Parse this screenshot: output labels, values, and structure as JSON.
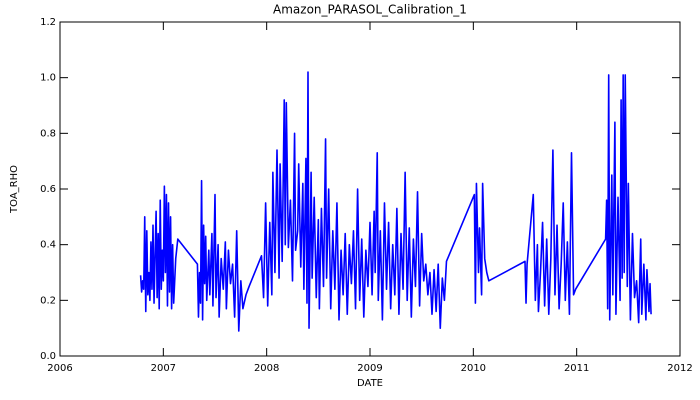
{
  "chart_data": {
    "type": "line",
    "title": "Amazon_PARASOL_Calibration_1",
    "x_label": "DATE",
    "y_label": "TOA_RHO",
    "color": "#0000ff",
    "grid": false,
    "xlim": [
      2006,
      2012
    ],
    "xticks": [
      2006,
      2007,
      2008,
      2009,
      2010,
      2011,
      2012
    ],
    "ylim": [
      0,
      1.2
    ],
    "yticks": [
      {
        "value": 0,
        "label": "0.0"
      },
      0.2,
      0.4,
      0.6,
      0.8,
      {
        "value": 1,
        "label": "1.0"
      },
      1.2
    ],
    "x": [
      2006.78,
      2006.79,
      2006.8,
      2006.81,
      2006.82,
      2006.83,
      2006.84,
      2006.85,
      2006.86,
      2006.87,
      2006.88,
      2006.89,
      2006.9,
      2006.91,
      2006.92,
      2006.93,
      2006.94,
      2006.95,
      2006.96,
      2006.97,
      2006.98,
      2006.99,
      2007.0,
      2007.01,
      2007.02,
      2007.03,
      2007.04,
      2007.05,
      2007.06,
      2007.07,
      2007.08,
      2007.09,
      2007.1,
      2007.12,
      2007.14,
      2007.33,
      2007.34,
      2007.35,
      2007.36,
      2007.37,
      2007.38,
      2007.39,
      2007.4,
      2007.41,
      2007.42,
      2007.44,
      2007.45,
      2007.47,
      2007.48,
      2007.5,
      2007.51,
      2007.53,
      2007.54,
      2007.56,
      2007.58,
      2007.6,
      2007.61,
      2007.63,
      2007.65,
      2007.67,
      2007.69,
      2007.71,
      2007.73,
      2007.75,
      2007.77,
      2007.8,
      2007.83,
      2007.95,
      2007.97,
      2007.99,
      2008.01,
      2008.03,
      2008.05,
      2008.06,
      2008.08,
      2008.1,
      2008.12,
      2008.13,
      2008.15,
      2008.17,
      2008.18,
      2008.19,
      2008.21,
      2008.23,
      2008.25,
      2008.27,
      2008.28,
      2008.3,
      2008.31,
      2008.33,
      2008.35,
      2008.36,
      2008.38,
      2008.39,
      2008.4,
      2008.41,
      2008.43,
      2008.44,
      2008.46,
      2008.48,
      2008.5,
      2008.51,
      2008.53,
      2008.55,
      2008.57,
      2008.58,
      2008.6,
      2008.62,
      2008.64,
      2008.66,
      2008.68,
      2008.7,
      2008.72,
      2008.74,
      2008.76,
      2008.78,
      2008.8,
      2008.82,
      2008.84,
      2008.86,
      2008.88,
      2008.9,
      2008.92,
      2008.94,
      2008.96,
      2008.98,
      2009.0,
      2009.02,
      2009.04,
      2009.05,
      2009.07,
      2009.08,
      2009.1,
      2009.12,
      2009.14,
      2009.16,
      2009.18,
      2009.2,
      2009.22,
      2009.24,
      2009.26,
      2009.28,
      2009.3,
      2009.32,
      2009.34,
      2009.36,
      2009.38,
      2009.4,
      2009.42,
      2009.44,
      2009.46,
      2009.48,
      2009.5,
      2009.52,
      2009.54,
      2009.56,
      2009.58,
      2009.6,
      2009.62,
      2009.64,
      2009.66,
      2009.68,
      2009.7,
      2009.72,
      2009.74,
      2010.01,
      2010.02,
      2010.03,
      2010.05,
      2010.06,
      2010.08,
      2010.09,
      2010.11,
      2010.13,
      2010.15,
      2010.5,
      2010.51,
      2010.52,
      2010.58,
      2010.6,
      2010.62,
      2010.63,
      2010.65,
      2010.67,
      2010.69,
      2010.71,
      2010.73,
      2010.75,
      2010.77,
      2010.79,
      2010.81,
      2010.83,
      2010.85,
      2010.87,
      2010.89,
      2010.91,
      2010.93,
      2010.95,
      2010.97,
      2010.99,
      2011.28,
      2011.29,
      2011.3,
      2011.31,
      2011.32,
      2011.34,
      2011.35,
      2011.37,
      2011.38,
      2011.4,
      2011.42,
      2011.43,
      2011.44,
      2011.45,
      2011.46,
      2011.47,
      2011.49,
      2011.5,
      2011.52,
      2011.54,
      2011.56,
      2011.58,
      2011.6,
      2011.62,
      2011.63,
      2011.65,
      2011.67,
      2011.68,
      2011.7,
      2011.71,
      2011.72
    ],
    "values": [
      0.29,
      0.23,
      0.27,
      0.24,
      0.5,
      0.16,
      0.45,
      0.22,
      0.3,
      0.2,
      0.41,
      0.24,
      0.47,
      0.19,
      0.36,
      0.52,
      0.21,
      0.44,
      0.17,
      0.56,
      0.24,
      0.38,
      0.27,
      0.61,
      0.3,
      0.58,
      0.18,
      0.55,
      0.23,
      0.5,
      0.17,
      0.4,
      0.19,
      0.35,
      0.42,
      0.33,
      0.14,
      0.3,
      0.19,
      0.63,
      0.13,
      0.47,
      0.26,
      0.43,
      0.2,
      0.38,
      0.22,
      0.44,
      0.18,
      0.58,
      0.21,
      0.4,
      0.14,
      0.35,
      0.24,
      0.41,
      0.17,
      0.38,
      0.26,
      0.33,
      0.14,
      0.45,
      0.09,
      0.27,
      0.17,
      0.22,
      0.25,
      0.36,
      0.21,
      0.55,
      0.18,
      0.48,
      0.22,
      0.66,
      0.3,
      0.74,
      0.28,
      0.69,
      0.34,
      0.92,
      0.4,
      0.91,
      0.39,
      0.56,
      0.27,
      0.8,
      0.38,
      0.45,
      0.69,
      0.32,
      0.62,
      0.24,
      0.71,
      0.19,
      1.02,
      0.1,
      0.66,
      0.28,
      0.57,
      0.21,
      0.49,
      0.17,
      0.53,
      0.25,
      0.78,
      0.28,
      0.6,
      0.17,
      0.45,
      0.24,
      0.55,
      0.13,
      0.38,
      0.22,
      0.44,
      0.15,
      0.4,
      0.26,
      0.45,
      0.17,
      0.6,
      0.2,
      0.42,
      0.14,
      0.38,
      0.25,
      0.48,
      0.22,
      0.52,
      0.3,
      0.73,
      0.2,
      0.45,
      0.13,
      0.55,
      0.24,
      0.48,
      0.17,
      0.4,
      0.22,
      0.53,
      0.15,
      0.44,
      0.24,
      0.66,
      0.2,
      0.46,
      0.14,
      0.42,
      0.25,
      0.59,
      0.18,
      0.44,
      0.27,
      0.33,
      0.22,
      0.3,
      0.15,
      0.31,
      0.16,
      0.33,
      0.1,
      0.28,
      0.2,
      0.34,
      0.58,
      0.19,
      0.62,
      0.3,
      0.46,
      0.22,
      0.62,
      0.35,
      0.3,
      0.27,
      0.34,
      0.19,
      0.33,
      0.58,
      0.2,
      0.4,
      0.16,
      0.3,
      0.48,
      0.18,
      0.42,
      0.15,
      0.35,
      0.74,
      0.22,
      0.47,
      0.17,
      0.33,
      0.55,
      0.2,
      0.41,
      0.15,
      0.73,
      0.22,
      0.24,
      0.42,
      0.56,
      0.17,
      1.01,
      0.13,
      0.65,
      0.22,
      0.84,
      0.15,
      0.57,
      0.2,
      0.92,
      0.28,
      1.01,
      0.3,
      1.01,
      0.25,
      0.62,
      0.13,
      0.44,
      0.21,
      0.27,
      0.12,
      0.42,
      0.15,
      0.33,
      0.13,
      0.31,
      0.16,
      0.26,
      0.15
    ]
  }
}
